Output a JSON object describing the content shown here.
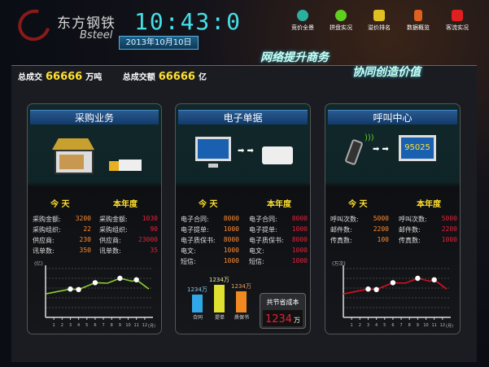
{
  "brand": {
    "name_cn": "东方钢铁",
    "name_en": "Bsteel"
  },
  "clock": "10:43:0",
  "date": "2013年10月10日",
  "nav": [
    {
      "label": "竞价全景",
      "color": "#2ab0a0"
    },
    {
      "label": "拼盘实况",
      "color": "#60d020"
    },
    {
      "label": "溢价排名",
      "color": "#e0c020"
    },
    {
      "label": "数据概览",
      "color": "#e06020"
    },
    {
      "label": "客流实况",
      "color": "#e02020"
    }
  ],
  "slogan": [
    "网络提升商务",
    "协同创造价值"
  ],
  "totals": {
    "label1": "总成交",
    "value1": "66666",
    "unit1": "万吨",
    "label2": "总成交额",
    "value2": "66666",
    "unit2": "亿"
  },
  "panels": [
    {
      "title": "采购业务",
      "today": "今  天",
      "year": "本年度",
      "today_rows": [
        [
          "采购金额:",
          "3200"
        ],
        [
          "采购组织:",
          "22"
        ],
        [
          "供应商:",
          "230"
        ],
        [
          "讯单数:",
          "350"
        ]
      ],
      "year_rows": [
        [
          "采购金额:",
          "1030"
        ],
        [
          "采购组织:",
          "90"
        ],
        [
          "供应商:",
          "23000"
        ],
        [
          "讯单数:",
          "35"
        ]
      ]
    },
    {
      "title": "电子单据",
      "today": "今  天",
      "year": "本年度",
      "today_rows": [
        [
          "电子合同:",
          "8000"
        ],
        [
          "电子提单:",
          "1000"
        ],
        [
          "电子质保书:",
          "8000"
        ],
        [
          "电文:",
          "1000"
        ],
        [
          "短信:",
          "1000"
        ]
      ],
      "year_rows": [
        [
          "电子合同:",
          "8000"
        ],
        [
          "电子提单:",
          "1000"
        ],
        [
          "电子质保书:",
          "8000"
        ],
        [
          "电文:",
          "1000"
        ],
        [
          "短信:",
          "1000"
        ]
      ],
      "bars": [
        {
          "label": "合同",
          "value": "1234万",
          "color": "#30a8e8",
          "level": 0.55
        },
        {
          "label": "提单",
          "value": "1234万",
          "color": "#e0e030",
          "level": 0.85
        },
        {
          "label": "质保书",
          "value": "1234万",
          "color": "#f08a20",
          "level": 0.65
        }
      ],
      "saving": {
        "label": "共节省成本",
        "value": "1234",
        "unit": "万"
      }
    },
    {
      "title": "呼叫中心",
      "today": "今  天",
      "year": "本年度",
      "today_rows": [
        [
          "呼叫次数:",
          "5000"
        ],
        [
          "邮件数:",
          "2200"
        ],
        [
          "传真数:",
          "100"
        ]
      ],
      "year_rows": [
        [
          "呼叫次数:",
          "5000"
        ],
        [
          "邮件数:",
          "2200"
        ],
        [
          "传真数:",
          "1000"
        ]
      ],
      "screen_number": "95025"
    }
  ],
  "chart_data": [
    {
      "type": "line",
      "ylabel": "(亿)",
      "xlabel": "(月)",
      "categories": [
        "1",
        "2",
        "3",
        "4",
        "5",
        "6",
        "7",
        "8",
        "9",
        "10",
        "11",
        "12"
      ],
      "x": [
        0,
        3,
        4,
        6,
        7.5,
        9,
        10.5,
        11,
        12.5
      ],
      "y": [
        2.4,
        2.9,
        2.85,
        3.55,
        3.5,
        4.0,
        3.7,
        3.85,
        2.9
      ],
      "markers_at": [
        3,
        4,
        6,
        9,
        11
      ],
      "ylim": [
        0,
        5
      ],
      "color": "#8ccc30"
    },
    {
      "type": "line",
      "ylabel": "(万次)",
      "xlabel": "(月)",
      "categories": [
        "1",
        "2",
        "3",
        "4",
        "5",
        "6",
        "7",
        "8",
        "9",
        "10",
        "11",
        "12"
      ],
      "x": [
        0,
        3,
        4,
        6,
        7.5,
        9,
        10.5,
        11,
        12.5
      ],
      "y": [
        2.4,
        2.9,
        2.85,
        3.55,
        3.5,
        4.0,
        3.7,
        3.85,
        2.9
      ],
      "markers_at": [
        3,
        4,
        6,
        9,
        11
      ],
      "ylim": [
        0,
        5
      ],
      "color": "#d81020"
    }
  ]
}
